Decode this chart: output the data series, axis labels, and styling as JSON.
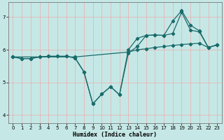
{
  "xlabel": "Humidex (Indice chaleur)",
  "bg_color": "#c5e8e6",
  "grid_color": "#e8b4b4",
  "line_color": "#1a6b6b",
  "xlim": [
    -0.5,
    23.5
  ],
  "ylim": [
    3.75,
    7.45
  ],
  "yticks": [
    4,
    5,
    6,
    7
  ],
  "xticks": [
    0,
    1,
    2,
    3,
    4,
    5,
    6,
    7,
    8,
    9,
    10,
    11,
    12,
    13,
    14,
    15,
    16,
    17,
    18,
    19,
    20,
    21,
    22,
    23
  ],
  "series": [
    {
      "x": [
        0,
        1,
        2,
        3,
        4,
        5,
        6,
        7,
        8,
        9,
        10,
        11,
        12,
        13,
        14,
        15,
        16,
        17,
        18,
        19,
        20,
        21,
        22,
        23
      ],
      "y": [
        5.78,
        5.73,
        5.73,
        5.78,
        5.8,
        5.8,
        5.8,
        5.75,
        5.32,
        4.34,
        4.64,
        4.87,
        4.62,
        6.0,
        6.35,
        6.44,
        6.45,
        6.44,
        6.88,
        7.2,
        6.75,
        6.58,
        6.07,
        6.15
      ]
    },
    {
      "x": [
        0,
        1,
        2,
        3,
        4,
        5,
        6,
        7,
        8,
        9,
        10,
        11,
        12,
        13,
        14,
        15,
        16,
        17,
        18,
        19,
        20,
        21,
        22,
        23
      ],
      "y": [
        5.78,
        5.73,
        5.73,
        5.78,
        5.8,
        5.8,
        5.8,
        5.75,
        5.32,
        4.34,
        4.64,
        4.87,
        4.62,
        5.9,
        6.1,
        6.44,
        6.45,
        6.44,
        6.5,
        7.15,
        6.6,
        6.55,
        6.07,
        6.15
      ]
    },
    {
      "x": [
        0,
        7,
        13,
        14,
        15,
        16,
        17,
        18,
        19,
        20,
        21,
        22,
        23
      ],
      "y": [
        5.78,
        5.78,
        5.93,
        6.0,
        6.03,
        6.07,
        6.1,
        6.13,
        6.16,
        6.18,
        6.2,
        6.07,
        6.15
      ]
    }
  ]
}
